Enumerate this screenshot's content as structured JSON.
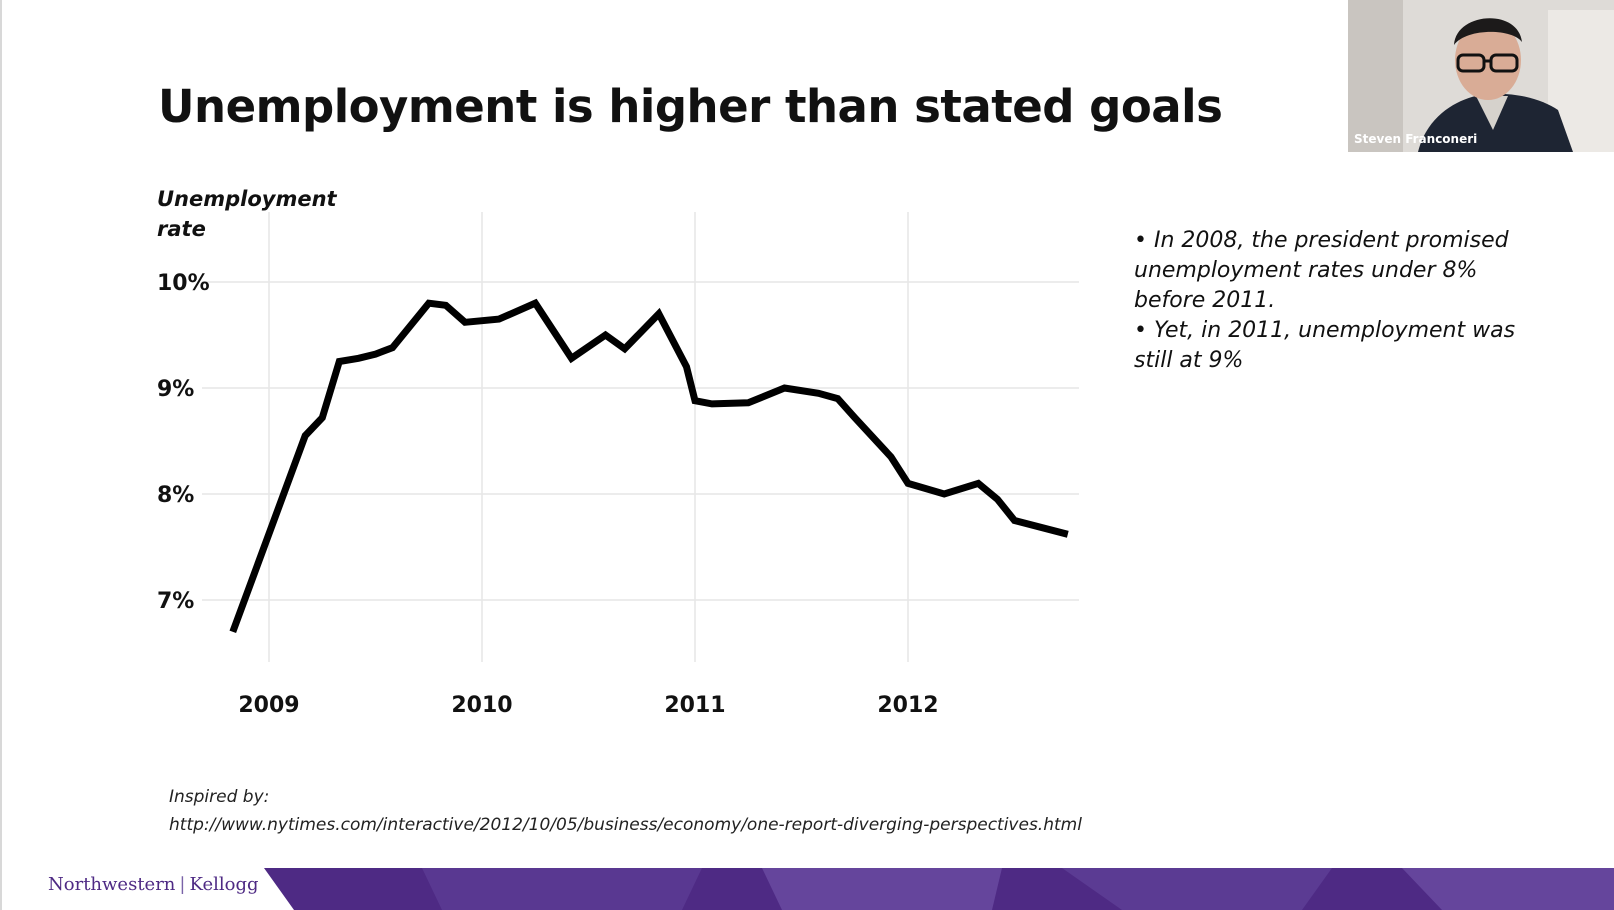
{
  "slide": {
    "title": "Unemployment is higher than stated goals",
    "ylabel_lines": [
      "Unemployment",
      "rate"
    ],
    "bullets": [
      "• In 2008, the president promised unemployment rates under 8% before 2011.",
      "• Yet, in 2011, unemployment was still at 9%"
    ],
    "credit": {
      "label": "Inspired by:",
      "url": "http://www.nytimes.com/interactive/2012/10/05/business/economy/one-report-diverging-perspectives.html"
    },
    "logo": {
      "left": "Northwestern",
      "separator": "|",
      "right": "Kellogg"
    }
  },
  "webcam": {
    "name": "Steven Franconeri"
  },
  "colors": {
    "line": "#000000",
    "grid": "#e6e6e6",
    "brand_purple": "#4e2a84"
  },
  "chart_data": {
    "type": "line",
    "title": "",
    "ylabel": "Unemployment rate",
    "xlabel": "",
    "xlim": [
      2008.83,
      2012.75
    ],
    "ylim": [
      6.3,
      10.7
    ],
    "x_ticks": [
      2009,
      2010,
      2011,
      2012
    ],
    "x_tick_labels": [
      "2009",
      "2010",
      "2011",
      "2012"
    ],
    "y_ticks": [
      7,
      8,
      9,
      10
    ],
    "y_tick_labels": [
      "7%",
      "8%",
      "9%",
      "10%"
    ],
    "grid": true,
    "legend": "none",
    "series": [
      {
        "x": [
          2008.83,
          2009.17,
          2009.25,
          2009.33,
          2009.42,
          2009.5,
          2009.58,
          2009.75,
          2009.83,
          2009.92,
          2010.08,
          2010.25,
          2010.42,
          2010.58,
          2010.67,
          2010.83,
          2010.96,
          2011.0,
          2011.08,
          2011.25,
          2011.42,
          2011.58,
          2011.67,
          2011.75,
          2011.92,
          2012.0,
          2012.17,
          2012.33,
          2012.42,
          2012.5,
          2012.75
        ],
        "y": [
          6.7,
          8.55,
          8.72,
          9.25,
          9.28,
          9.32,
          9.38,
          9.8,
          9.78,
          9.62,
          9.65,
          9.8,
          9.28,
          9.5,
          9.37,
          9.7,
          9.2,
          8.88,
          8.85,
          8.86,
          9.0,
          8.95,
          8.9,
          8.72,
          8.35,
          8.1,
          8.0,
          8.1,
          7.95,
          7.75,
          7.62
        ]
      }
    ]
  }
}
